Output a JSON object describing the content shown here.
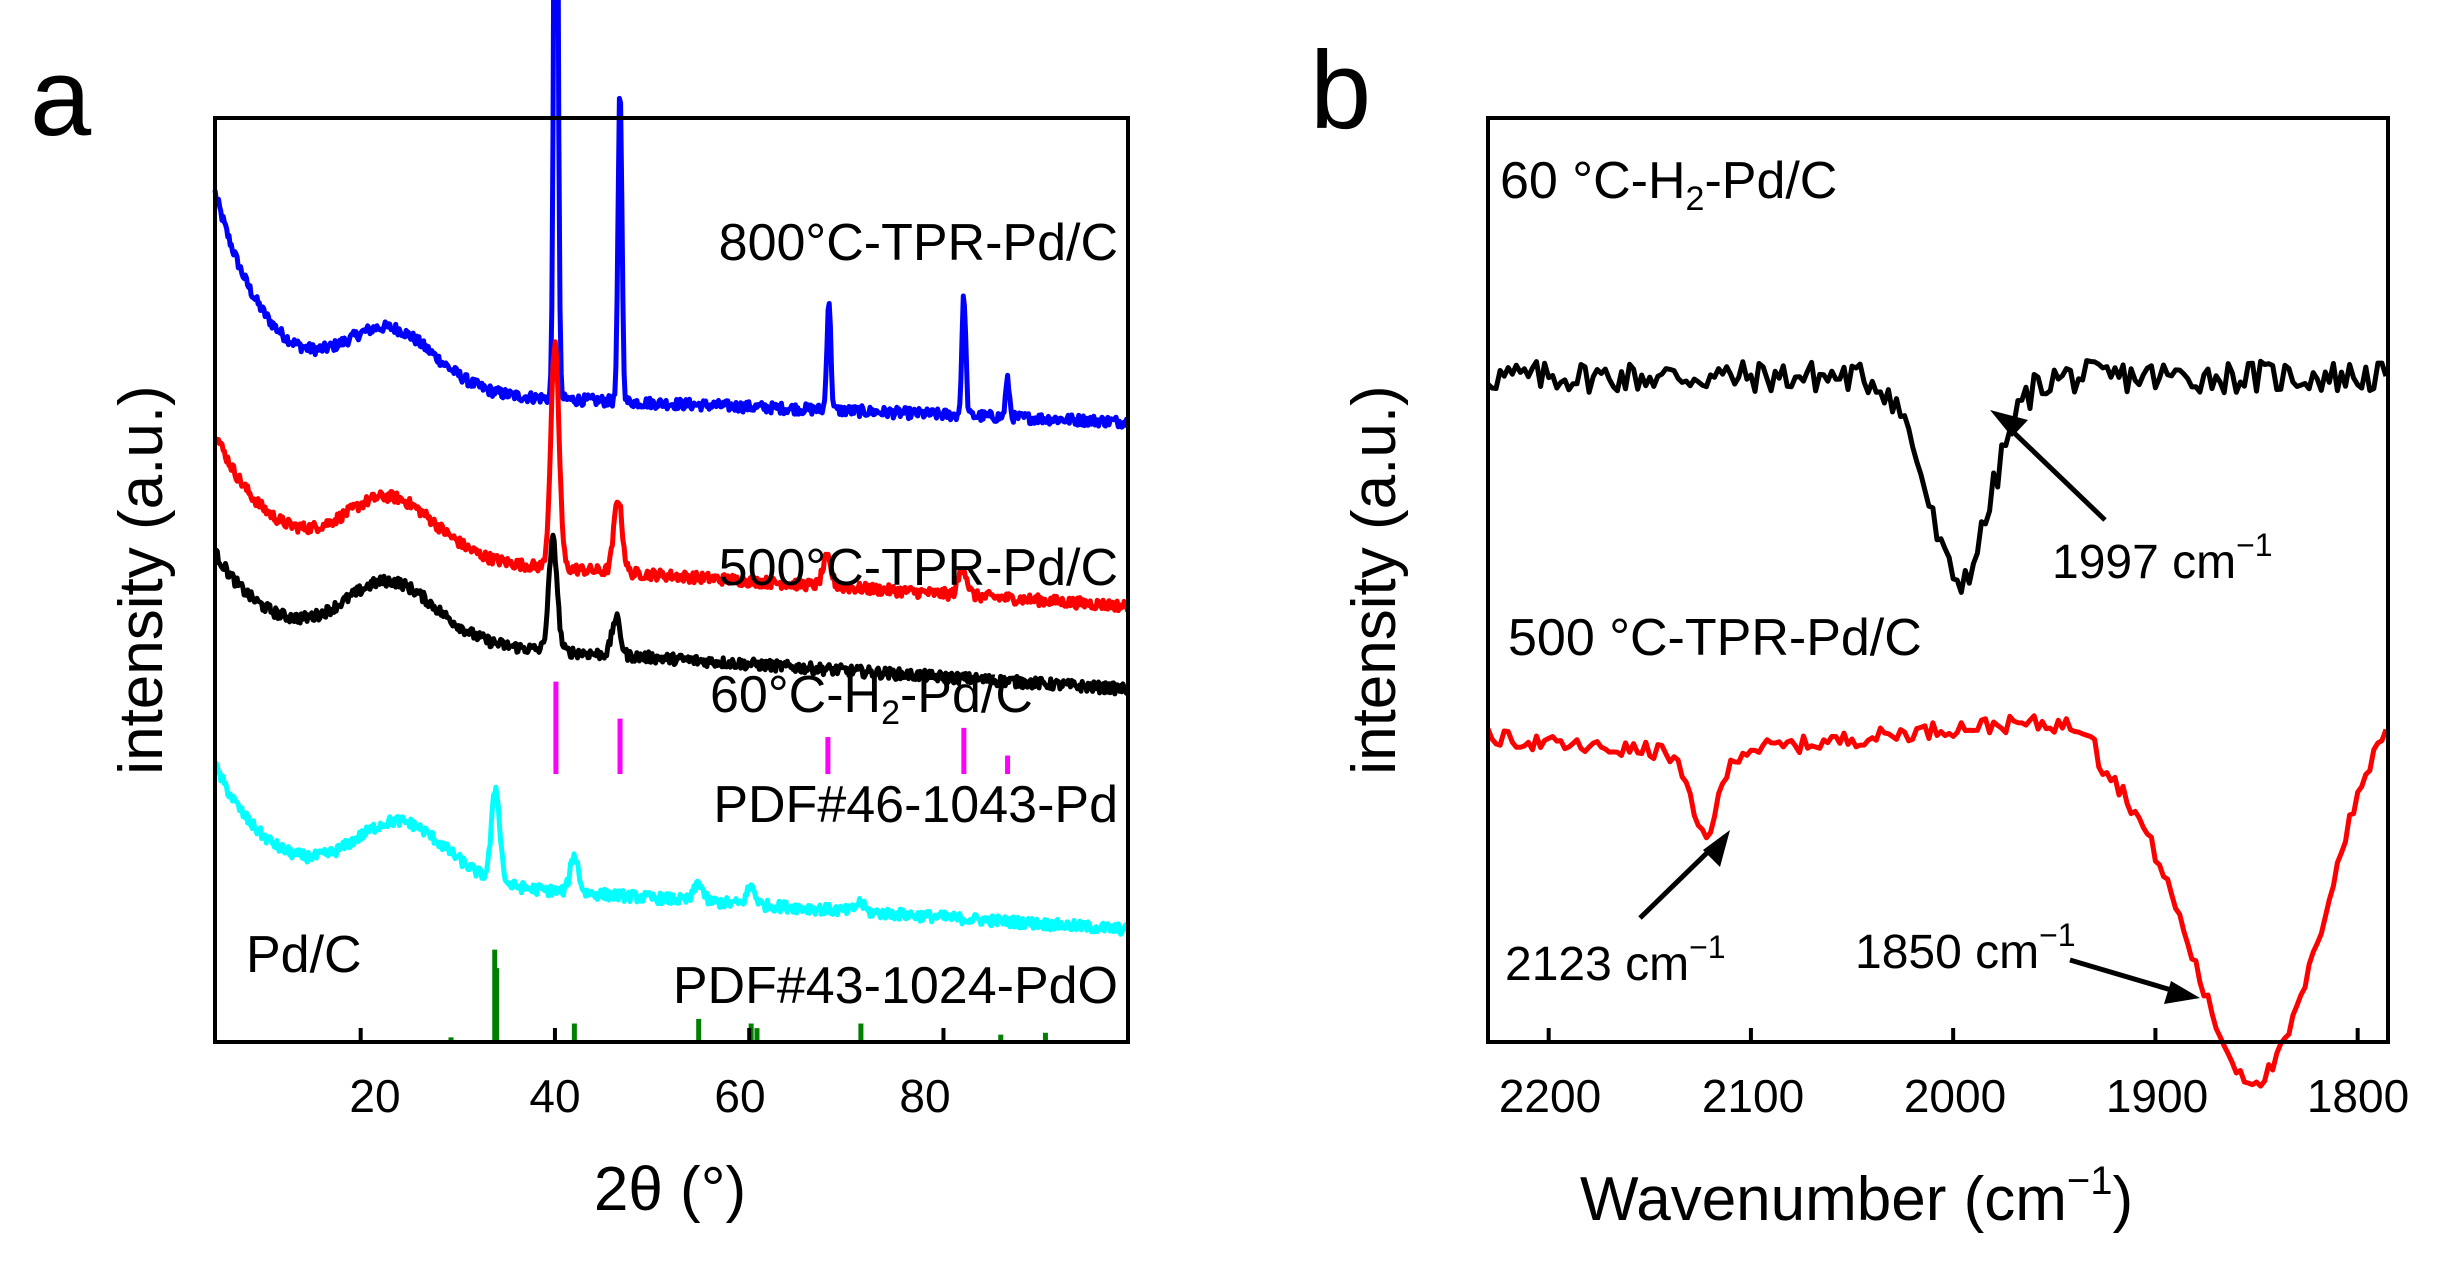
{
  "chart_data": [
    {
      "type": "line",
      "panel": "a",
      "xlabel": "2θ (°)",
      "ylabel": "intensity (a.u.)",
      "xlim": [
        5,
        99
      ],
      "xticks": [
        20,
        40,
        60,
        80
      ],
      "yticks": "none (offset stacked traces, arbitrary units)",
      "series": [
        {
          "name": "800°C-TPR-Pd/C",
          "color": "#0000ff",
          "offset": 0.7,
          "baseline": "broad hump ~23°",
          "peaks": [
            [
              40.1,
              0.92
            ],
            [
              46.7,
              0.34
            ],
            [
              68.2,
              0.12
            ],
            [
              82.1,
              0.13
            ],
            [
              86.6,
              0.04
            ]
          ]
        },
        {
          "name": "500°C-TPR-Pd/C",
          "color": "#ff0000",
          "offset": 0.52,
          "baseline": "broad hump ~23°",
          "peaks": [
            [
              40.0,
              0.24
            ],
            [
              46.5,
              0.08
            ],
            [
              68.0,
              0.03
            ],
            [
              82.0,
              0.03
            ]
          ]
        },
        {
          "name": "60°C-H2-Pd/C",
          "color": "#000000",
          "offset": 0.43,
          "baseline": "broad hump ~23°",
          "peaks": [
            [
              39.8,
              0.12
            ],
            [
              46.3,
              0.04
            ]
          ]
        },
        {
          "name": "Pd/C",
          "color": "#00ffff",
          "offset": 0.17,
          "baseline": "broad hump ~24°",
          "peaks": [
            [
              33.9,
              0.1
            ],
            [
              42.0,
              0.04
            ],
            [
              54.8,
              0.02
            ],
            [
              60.2,
              0.02
            ],
            [
              71.4,
              0.01
            ]
          ]
        }
      ],
      "reference_patterns": [
        {
          "name": "PDF#46-1043-Pd",
          "color": "#ff00ff",
          "base": 0.29,
          "lines": [
            [
              40.1,
              0.1
            ],
            [
              46.7,
              0.06
            ],
            [
              68.1,
              0.04
            ],
            [
              82.1,
              0.05
            ],
            [
              86.6,
              0.02
            ]
          ]
        },
        {
          "name": "PDF#43-1024-PdO",
          "color": "#008000",
          "base": 0.0,
          "lines": [
            [
              29.3,
              0.005
            ],
            [
              33.8,
              0.1
            ],
            [
              34.0,
              0.08
            ],
            [
              42.0,
              0.02
            ],
            [
              54.8,
              0.025
            ],
            [
              60.2,
              0.02
            ],
            [
              60.8,
              0.015
            ],
            [
              71.5,
              0.02
            ],
            [
              85.9,
              0.008
            ],
            [
              90.5,
              0.01
            ]
          ]
        }
      ]
    },
    {
      "type": "line",
      "panel": "b",
      "xlabel": "Wavenumber (cm−1)",
      "ylabel": "intensity (a.u.)",
      "xlim": [
        2230,
        1785
      ],
      "xticks": [
        2200,
        2100,
        2000,
        1900,
        1800
      ],
      "yticks": "none (offset stacked traces, arbitrary units)",
      "series": [
        {
          "name": "60 °C-H2-Pd/C",
          "color": "#000000",
          "offset": 0.72,
          "features": [
            {
              "center": 1997,
              "depth": 0.22,
              "label": "1997 cm−1"
            }
          ]
        },
        {
          "name": "500 °C-TPR-Pd/C",
          "color": "#ff0000",
          "offset": 0.33,
          "features": [
            {
              "center": 2123,
              "depth": 0.09,
              "label": "2123 cm−1"
            },
            {
              "center": 1850,
              "depth": 0.36,
              "label": "1850 cm−1"
            }
          ]
        }
      ]
    }
  ],
  "labels": {
    "panel_a": "a",
    "panel_b": "b",
    "a_xlabel_main": "2θ (°)",
    "a_ylabel": "intensity (a.u.)",
    "b_ylabel": "intensity (a.u.)",
    "b_xlabel_main": "Wavenumber (cm",
    "b_xlabel_sup": "−1",
    "b_xlabel_close": ")",
    "a_series_800": "800°C-TPR-Pd/C",
    "a_series_500": "500°C-TPR-Pd/C",
    "a_series_60_main": "60°C-H",
    "a_series_60_sub": "2",
    "a_series_60_rest": "-Pd/C",
    "a_ref_pd": "PDF#46-1043-Pd",
    "a_series_pdc": "Pd/C",
    "a_ref_pdo": "PDF#43-1024-PdO",
    "b_series_60_main": "60 °C-H",
    "b_series_60_sub": "2",
    "b_series_60_rest": "-Pd/C",
    "b_series_500": "500 °C-TPR-Pd/C",
    "b_annot_1997": "1997 cm",
    "b_annot_2123": "2123 cm",
    "b_annot_1850": "1850 cm",
    "b_annot_sup": "−1"
  }
}
